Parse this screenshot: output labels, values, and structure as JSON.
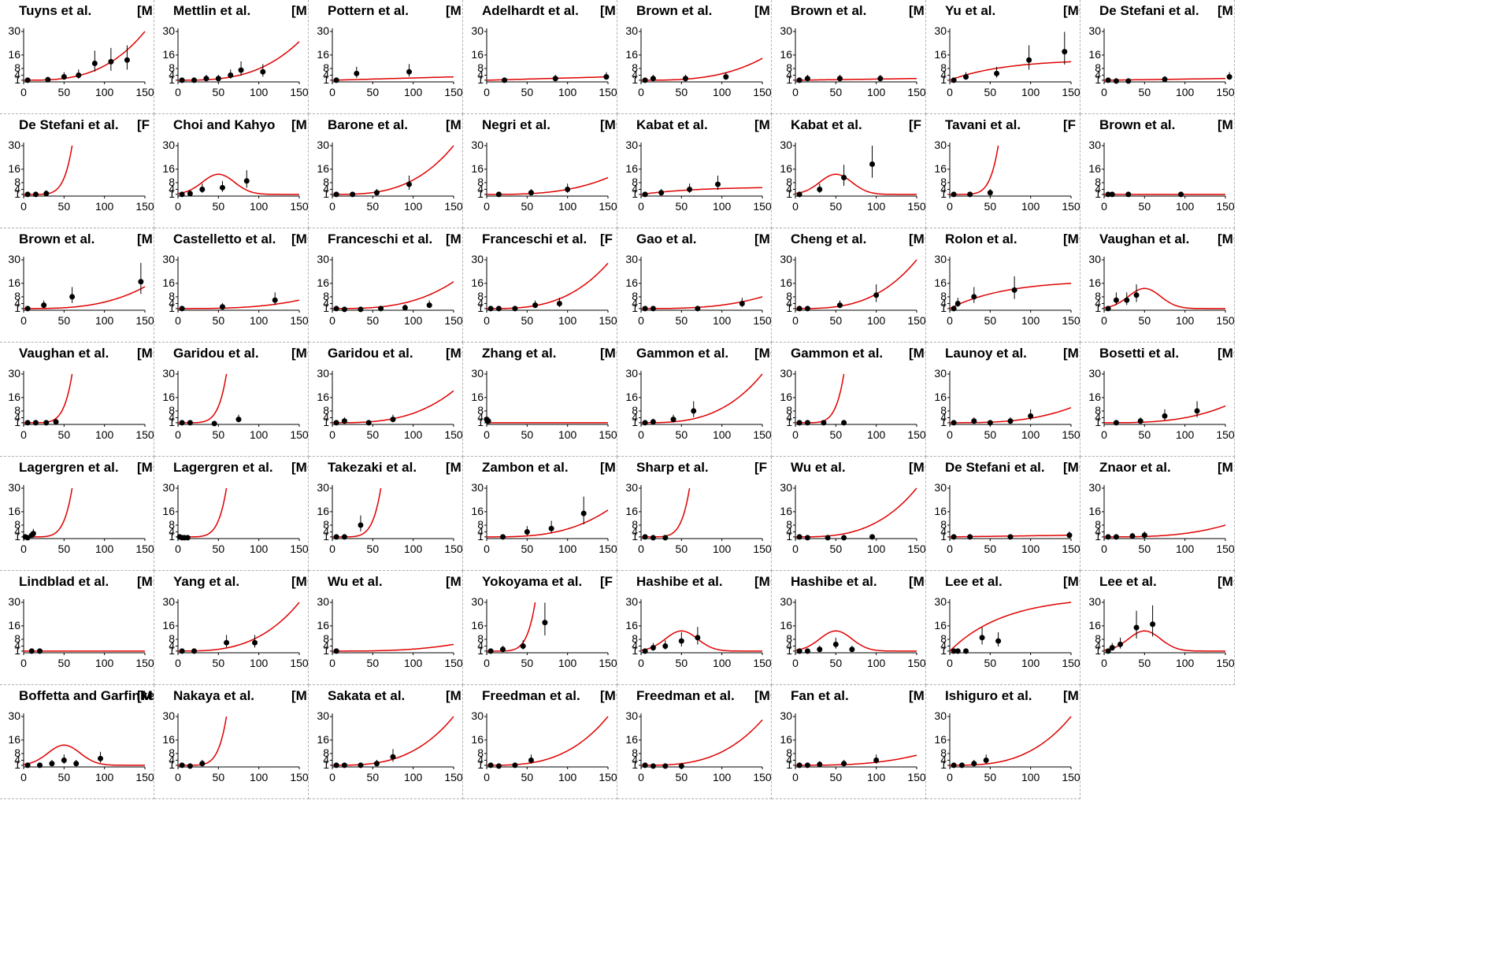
{
  "y_ticks": [
    "30",
    "16",
    "8",
    "4",
    "1"
  ],
  "x_ticks": [
    "0",
    "50",
    "100",
    "150"
  ],
  "colors": {
    "curve": "#e00000",
    "point": "#000000",
    "axis": "#000000",
    "border": "#b0b0b0"
  },
  "chart_data": [
    {
      "type": "scatter",
      "title": "Tuyns et al.",
      "sex": "[M  ]",
      "points": [
        [
          5,
          1
        ],
        [
          30,
          1.3
        ],
        [
          50,
          3
        ],
        [
          68,
          4
        ],
        [
          88,
          11
        ],
        [
          108,
          12
        ],
        [
          128,
          13
        ]
      ],
      "curve": "exp",
      "curve_end": 30
    },
    {
      "type": "scatter",
      "title": "Mettlin et al.",
      "sex": "[M  ]",
      "points": [
        [
          5,
          1
        ],
        [
          20,
          1
        ],
        [
          35,
          2
        ],
        [
          50,
          2
        ],
        [
          65,
          4
        ],
        [
          78,
          7
        ],
        [
          105,
          6
        ]
      ],
      "curve": "exp",
      "curve_end": 24
    },
    {
      "type": "scatter",
      "title": "Pottern et al.",
      "sex": "[M  ]",
      "points": [
        [
          5,
          1
        ],
        [
          30,
          5
        ],
        [
          95,
          6
        ]
      ],
      "curve": "flat",
      "curve_end": 3
    },
    {
      "type": "scatter",
      "title": "Adelhardt et al.",
      "sex": "[M  ]",
      "points": [
        [
          22,
          1
        ],
        [
          85,
          2
        ],
        [
          148,
          3
        ]
      ],
      "curve": "flat",
      "curve_end": 3
    },
    {
      "type": "scatter",
      "title": "Brown et al.",
      "sex": "[M  ]",
      "points": [
        [
          5,
          1
        ],
        [
          15,
          2
        ],
        [
          55,
          2
        ],
        [
          105,
          3
        ]
      ],
      "curve": "exp",
      "curve_end": 14
    },
    {
      "type": "scatter",
      "title": "Brown et al.",
      "sex": "[M  ]",
      "points": [
        [
          5,
          1
        ],
        [
          15,
          2
        ],
        [
          55,
          2
        ],
        [
          105,
          2
        ]
      ],
      "curve": "flat",
      "curve_end": 2
    },
    {
      "type": "scatter",
      "title": "Yu et al.",
      "sex": "[M+F]",
      "points": [
        [
          5,
          1
        ],
        [
          20,
          3
        ],
        [
          58,
          5
        ],
        [
          98,
          13
        ],
        [
          142,
          18
        ]
      ],
      "curve": "sat",
      "curve_end": 12
    },
    {
      "type": "scatter",
      "title": "De Stefani et al.",
      "sex": "[M  ]",
      "points": [
        [
          5,
          1
        ],
        [
          15,
          0.5
        ],
        [
          30,
          0.5
        ],
        [
          75,
          1.5
        ],
        [
          155,
          3
        ]
      ],
      "curve": "flat",
      "curve_end": 2
    },
    {
      "type": "scatter",
      "title": "De Stefani et al.",
      "sex": "[F  ]",
      "points": [
        [
          5,
          1
        ],
        [
          15,
          1
        ],
        [
          28,
          1.5
        ]
      ],
      "curve": "steep",
      "curve_end": 30
    },
    {
      "type": "scatter",
      "title": "Choi and Kahyo",
      "sex": "[M  ]",
      "points": [
        [
          5,
          1
        ],
        [
          15,
          1.5
        ],
        [
          30,
          4
        ],
        [
          55,
          5
        ],
        [
          85,
          9
        ]
      ],
      "curve": "bump",
      "curve_end": 1
    },
    {
      "type": "scatter",
      "title": "Barone et al.",
      "sex": "[M  ]",
      "points": [
        [
          5,
          1
        ],
        [
          25,
          1
        ],
        [
          55,
          2
        ],
        [
          95,
          7
        ]
      ],
      "curve": "exp",
      "curve_end": 30
    },
    {
      "type": "scatter",
      "title": "Negri et al.",
      "sex": "[M+F]",
      "points": [
        [
          15,
          1
        ],
        [
          55,
          2
        ],
        [
          100,
          4
        ]
      ],
      "curve": "exp",
      "curve_end": 11
    },
    {
      "type": "scatter",
      "title": "Kabat et al.",
      "sex": "[M  ]",
      "points": [
        [
          5,
          1
        ],
        [
          25,
          2
        ],
        [
          60,
          4
        ],
        [
          95,
          7
        ]
      ],
      "curve": "sat",
      "curve_end": 5
    },
    {
      "type": "scatter",
      "title": "Kabat et al.",
      "sex": "[F  ]",
      "points": [
        [
          5,
          1
        ],
        [
          30,
          4
        ],
        [
          60,
          11
        ],
        [
          95,
          19
        ]
      ],
      "curve": "bump",
      "curve_end": 18
    },
    {
      "type": "scatter",
      "title": "Tavani et al.",
      "sex": "[F  ]",
      "points": [
        [
          5,
          1
        ],
        [
          25,
          1
        ],
        [
          50,
          2
        ]
      ],
      "curve": "steep",
      "curve_end": 30
    },
    {
      "type": "scatter",
      "title": "Brown et al.",
      "sex": "[M  ]",
      "points": [
        [
          5,
          1
        ],
        [
          10,
          1
        ],
        [
          30,
          1
        ],
        [
          95,
          1
        ]
      ],
      "curve": "flat",
      "curve_end": 1
    },
    {
      "type": "scatter",
      "title": "Brown et al.",
      "sex": "[M  ]",
      "points": [
        [
          5,
          1
        ],
        [
          25,
          3
        ],
        [
          60,
          8
        ],
        [
          145,
          17
        ]
      ],
      "curve": "exp",
      "curve_end": 14
    },
    {
      "type": "scatter",
      "title": "Castelletto et al.",
      "sex": "[M+F]",
      "points": [
        [
          5,
          1
        ],
        [
          55,
          2
        ],
        [
          120,
          6
        ]
      ],
      "curve": "exp",
      "curve_end": 6
    },
    {
      "type": "scatter",
      "title": "Franceschi et al.",
      "sex": "[M  ]",
      "points": [
        [
          5,
          1
        ],
        [
          15,
          0.5
        ],
        [
          35,
          0.5
        ],
        [
          60,
          1
        ],
        [
          90,
          1.5
        ],
        [
          120,
          3
        ]
      ],
      "curve": "exp",
      "curve_end": 17
    },
    {
      "type": "scatter",
      "title": "Franceschi et al.",
      "sex": "[F  ]",
      "points": [
        [
          5,
          1
        ],
        [
          15,
          1
        ],
        [
          35,
          1
        ],
        [
          60,
          3
        ],
        [
          90,
          4
        ]
      ],
      "curve": "exp",
      "curve_end": 28
    },
    {
      "type": "scatter",
      "title": "Gao et al.",
      "sex": "[M  ]",
      "points": [
        [
          5,
          1
        ],
        [
          15,
          1
        ],
        [
          70,
          1
        ],
        [
          125,
          4
        ]
      ],
      "curve": "exp",
      "curve_end": 8
    },
    {
      "type": "scatter",
      "title": "Cheng et al.",
      "sex": "[M+F]",
      "points": [
        [
          5,
          1
        ],
        [
          15,
          1
        ],
        [
          55,
          3
        ],
        [
          100,
          9
        ]
      ],
      "curve": "exp",
      "curve_end": 30
    },
    {
      "type": "scatter",
      "title": "Rolon et al.",
      "sex": "[M+F]",
      "points": [
        [
          5,
          1
        ],
        [
          10,
          4
        ],
        [
          30,
          8
        ],
        [
          80,
          12
        ]
      ],
      "curve": "sat",
      "curve_end": 16
    },
    {
      "type": "scatter",
      "title": "Vaughan et al.",
      "sex": "[M+F]",
      "points": [
        [
          5,
          1
        ],
        [
          15,
          6
        ],
        [
          28,
          6
        ],
        [
          40,
          9
        ]
      ],
      "curve": "bump",
      "curve_end": 1
    },
    {
      "type": "scatter",
      "title": "Vaughan et al.",
      "sex": "[M+F]",
      "points": [
        [
          5,
          1
        ],
        [
          15,
          1
        ],
        [
          28,
          1
        ],
        [
          40,
          1.5
        ]
      ],
      "curve": "steep",
      "curve_end": 30
    },
    {
      "type": "scatter",
      "title": "Garidou et al.",
      "sex": "[M+F]",
      "points": [
        [
          5,
          1
        ],
        [
          15,
          1
        ],
        [
          45,
          0.5
        ],
        [
          75,
          3
        ]
      ],
      "curve": "steep",
      "curve_end": 30
    },
    {
      "type": "scatter",
      "title": "Garidou et al.",
      "sex": "[M+F]",
      "points": [
        [
          5,
          1
        ],
        [
          15,
          2
        ],
        [
          45,
          1
        ],
        [
          75,
          3
        ]
      ],
      "curve": "exp",
      "curve_end": 20
    },
    {
      "type": "scatter",
      "title": "Zhang et al.",
      "sex": "[M+F]",
      "points": [
        [
          0,
          3
        ],
        [
          1,
          2
        ],
        [
          2,
          2
        ]
      ],
      "curve": "flat",
      "curve_end": 1
    },
    {
      "type": "scatter",
      "title": "Gammon et al.",
      "sex": "[M+F]",
      "points": [
        [
          5,
          1
        ],
        [
          15,
          1.5
        ],
        [
          40,
          3
        ],
        [
          65,
          8
        ]
      ],
      "curve": "exp",
      "curve_end": 30
    },
    {
      "type": "scatter",
      "title": "Gammon et al.",
      "sex": "[M+F]",
      "points": [
        [
          5,
          1
        ],
        [
          15,
          1
        ],
        [
          35,
          1
        ],
        [
          60,
          1
        ]
      ],
      "curve": "steep",
      "curve_end": 30
    },
    {
      "type": "scatter",
      "title": "Launoy et al.",
      "sex": "[M  ]",
      "points": [
        [
          5,
          1
        ],
        [
          30,
          2
        ],
        [
          50,
          1
        ],
        [
          75,
          2
        ],
        [
          100,
          5
        ]
      ],
      "curve": "exp",
      "curve_end": 10
    },
    {
      "type": "scatter",
      "title": "Bosetti et al.",
      "sex": "[M+F]",
      "points": [
        [
          15,
          1
        ],
        [
          45,
          2
        ],
        [
          75,
          5
        ],
        [
          115,
          8
        ]
      ],
      "curve": "exp",
      "curve_end": 11
    },
    {
      "type": "scatter",
      "title": "Lagergren et al.",
      "sex": "[M+F]",
      "points": [
        [
          2,
          1
        ],
        [
          5,
          0.5
        ],
        [
          10,
          2
        ],
        [
          12,
          3
        ]
      ],
      "curve": "steep",
      "curve_end": 30
    },
    {
      "type": "scatter",
      "title": "Lagergren et al.",
      "sex": "[M+F]",
      "points": [
        [
          2,
          1
        ],
        [
          5,
          0.5
        ],
        [
          8,
          0.5
        ],
        [
          12,
          0.5
        ]
      ],
      "curve": "steep",
      "curve_end": 30
    },
    {
      "type": "scatter",
      "title": "Takezaki et al.",
      "sex": "[M  ]",
      "points": [
        [
          5,
          1
        ],
        [
          15,
          1
        ],
        [
          35,
          8
        ]
      ],
      "curve": "steep",
      "curve_end": 30
    },
    {
      "type": "scatter",
      "title": "Zambon et al.",
      "sex": "[M  ]",
      "points": [
        [
          20,
          1
        ],
        [
          50,
          4
        ],
        [
          80,
          6
        ],
        [
          120,
          15
        ]
      ],
      "curve": "exp",
      "curve_end": 17
    },
    {
      "type": "scatter",
      "title": "Sharp et al.",
      "sex": "[F  ]",
      "points": [
        [
          5,
          1
        ],
        [
          15,
          0.5
        ],
        [
          30,
          0.5
        ]
      ],
      "curve": "steep",
      "curve_end": 30
    },
    {
      "type": "scatter",
      "title": "Wu et al.",
      "sex": "[M+F]",
      "points": [
        [
          5,
          1
        ],
        [
          15,
          0.5
        ],
        [
          40,
          0.5
        ],
        [
          60,
          0.5
        ],
        [
          95,
          1
        ]
      ],
      "curve": "exp",
      "curve_end": 30
    },
    {
      "type": "scatter",
      "title": "De Stefani et al.",
      "sex": "[M+F]",
      "points": [
        [
          5,
          1
        ],
        [
          25,
          1
        ],
        [
          75,
          1
        ],
        [
          148,
          2
        ]
      ],
      "curve": "flat",
      "curve_end": 2
    },
    {
      "type": "scatter",
      "title": "Znaor et al.",
      "sex": "[M  ]",
      "points": [
        [
          5,
          1
        ],
        [
          15,
          1
        ],
        [
          35,
          1.5
        ],
        [
          50,
          2
        ]
      ],
      "curve": "exp",
      "curve_end": 8
    },
    {
      "type": "scatter",
      "title": "Lindblad et al.",
      "sex": "[M+F]",
      "points": [
        [
          10,
          1
        ],
        [
          20,
          1
        ]
      ],
      "curve": "flat",
      "curve_end": 1
    },
    {
      "type": "scatter",
      "title": "Yang et al.",
      "sex": "[M+F]",
      "points": [
        [
          5,
          1
        ],
        [
          20,
          1
        ],
        [
          60,
          6
        ],
        [
          95,
          6
        ]
      ],
      "curve": "exp",
      "curve_end": 30
    },
    {
      "type": "scatter",
      "title": "Wu et al.",
      "sex": "[M  ]",
      "points": [
        [
          5,
          1
        ]
      ],
      "curve": "exp",
      "curve_end": 5
    },
    {
      "type": "scatter",
      "title": "Yokoyama et al.",
      "sex": "[F  ]",
      "points": [
        [
          5,
          1
        ],
        [
          20,
          2
        ],
        [
          45,
          4
        ],
        [
          72,
          18
        ]
      ],
      "curve": "steep",
      "curve_end": 30
    },
    {
      "type": "scatter",
      "title": "Hashibe et al.",
      "sex": "[M+F]",
      "points": [
        [
          5,
          1
        ],
        [
          15,
          3
        ],
        [
          30,
          4
        ],
        [
          50,
          7
        ],
        [
          70,
          9
        ]
      ],
      "curve": "bump",
      "curve_end": 2
    },
    {
      "type": "scatter",
      "title": "Hashibe et al.",
      "sex": "[M+F]",
      "points": [
        [
          5,
          1
        ],
        [
          15,
          1
        ],
        [
          30,
          2
        ],
        [
          50,
          5
        ],
        [
          70,
          2
        ]
      ],
      "curve": "bump",
      "curve_end": 1
    },
    {
      "type": "scatter",
      "title": "Lee et al.",
      "sex": "[M+F]",
      "points": [
        [
          5,
          1
        ],
        [
          10,
          1
        ],
        [
          20,
          1
        ],
        [
          40,
          9
        ],
        [
          60,
          7
        ]
      ],
      "curve": "sat",
      "curve_end": 30
    },
    {
      "type": "scatter",
      "title": "Lee et al.",
      "sex": "[M+F]",
      "points": [
        [
          5,
          1
        ],
        [
          10,
          3
        ],
        [
          20,
          5
        ],
        [
          40,
          15
        ],
        [
          60,
          17
        ]
      ],
      "curve": "bump",
      "curve_end": 1
    },
    {
      "type": "scatter",
      "title": "Boffetta and Garfinkel",
      "sex": "[M  ]",
      "points": [
        [
          5,
          1
        ],
        [
          20,
          1
        ],
        [
          35,
          2
        ],
        [
          50,
          4
        ],
        [
          65,
          2
        ],
        [
          95,
          5
        ]
      ],
      "curve": "bump",
      "curve_end": 2
    },
    {
      "type": "scatter",
      "title": "Nakaya et al.",
      "sex": "[M  ]",
      "points": [
        [
          5,
          1
        ],
        [
          15,
          0.5
        ],
        [
          30,
          2
        ]
      ],
      "curve": "steep",
      "curve_end": 30
    },
    {
      "type": "scatter",
      "title": "Sakata et al.",
      "sex": "[M  ]",
      "points": [
        [
          5,
          1
        ],
        [
          15,
          1
        ],
        [
          35,
          1
        ],
        [
          55,
          2
        ],
        [
          75,
          6
        ]
      ],
      "curve": "exp",
      "curve_end": 30
    },
    {
      "type": "scatter",
      "title": "Freedman et al.",
      "sex": "[M+F]",
      "points": [
        [
          5,
          1
        ],
        [
          15,
          0.5
        ],
        [
          35,
          1
        ],
        [
          55,
          4
        ]
      ],
      "curve": "exp",
      "curve_end": 30
    },
    {
      "type": "scatter",
      "title": "Freedman et al.",
      "sex": "[M+F]",
      "points": [
        [
          5,
          1
        ],
        [
          15,
          0.5
        ],
        [
          30,
          0.5
        ],
        [
          50,
          0.5
        ]
      ],
      "curve": "exp",
      "curve_end": 28
    },
    {
      "type": "scatter",
      "title": "Fan et al.",
      "sex": "[M  ]",
      "points": [
        [
          5,
          1
        ],
        [
          15,
          1
        ],
        [
          30,
          1.5
        ],
        [
          60,
          2
        ],
        [
          100,
          4
        ]
      ],
      "curve": "exp",
      "curve_end": 7
    },
    {
      "type": "scatter",
      "title": "Ishiguro et al.",
      "sex": "[M  ]",
      "points": [
        [
          5,
          1
        ],
        [
          15,
          1
        ],
        [
          30,
          2
        ],
        [
          45,
          4
        ]
      ],
      "curve": "exp",
      "curve_end": 30
    }
  ]
}
